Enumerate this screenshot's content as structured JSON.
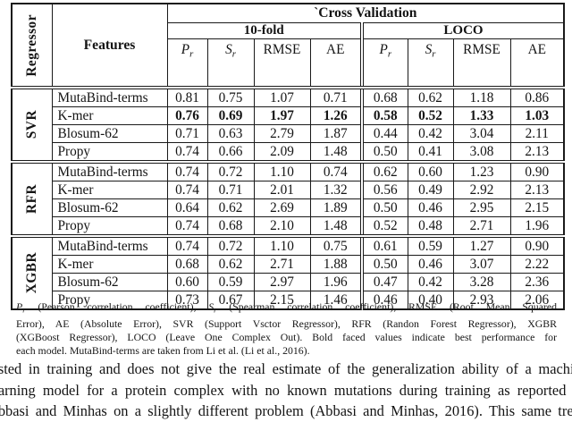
{
  "table": {
    "regressor_header": "Regressor",
    "features_header": "Features",
    "cross_validation_header": "`Cross Validation",
    "group_headers": [
      "10-fold",
      "LOCO"
    ],
    "metric_headers": [
      {
        "b": "P",
        "sub": "r",
        "italic": true
      },
      {
        "b": "S",
        "sub": "r",
        "italic": true
      },
      {
        "b": "RMSE",
        "sub": "",
        "italic": false
      },
      {
        "b": "AE",
        "sub": "",
        "italic": false
      },
      {
        "b": "P",
        "sub": "r",
        "italic": true
      },
      {
        "b": "S",
        "sub": "r",
        "italic": true
      },
      {
        "b": "RMSE",
        "sub": "",
        "italic": false
      },
      {
        "b": "AE",
        "sub": "",
        "italic": false
      }
    ],
    "sections": [
      {
        "regressor": "SVR",
        "rows": [
          {
            "feature": "MutaBind-terms",
            "bold": false,
            "values": [
              "0.81",
              "0.75",
              "1.07",
              "0.71",
              "0.68",
              "0.62",
              "1.18",
              "0.86"
            ]
          },
          {
            "feature": "K-mer",
            "bold": true,
            "values": [
              "0.76",
              "0.69",
              "1.97",
              "1.26",
              "0.58",
              "0.52",
              "1.33",
              "1.03"
            ]
          },
          {
            "feature": "Blosum-62",
            "bold": false,
            "values": [
              "0.71",
              "0.63",
              "2.79",
              "1.87",
              "0.44",
              "0.42",
              "3.04",
              "2.11"
            ]
          },
          {
            "feature": "Propy",
            "bold": false,
            "values": [
              "0.74",
              "0.66",
              "2.09",
              "1.48",
              "0.50",
              "0.41",
              "3.08",
              "2.13"
            ]
          }
        ]
      },
      {
        "regressor": "RFR",
        "rows": [
          {
            "feature": "MutaBind-terms",
            "bold": false,
            "values": [
              "0.74",
              "0.72",
              "1.10",
              "0.74",
              "0.62",
              "0.60",
              "1.23",
              "0.90"
            ]
          },
          {
            "feature": "K-mer",
            "bold": false,
            "values": [
              "0.74",
              "0.71",
              "2.01",
              "1.32",
              "0.56",
              "0.49",
              "2.92",
              "2.13"
            ]
          },
          {
            "feature": "Blosum-62",
            "bold": false,
            "values": [
              "0.64",
              "0.62",
              "2.69",
              "1.89",
              "0.50",
              "0.46",
              "2.95",
              "2.15"
            ]
          },
          {
            "feature": "Propy",
            "bold": false,
            "values": [
              "0.74",
              "0.68",
              "2.10",
              "1.48",
              "0.52",
              "0.48",
              "2.71",
              "1.96"
            ]
          }
        ]
      },
      {
        "regressor": "XGBR",
        "rows": [
          {
            "feature": "MutaBind-terms",
            "bold": false,
            "values": [
              "0.74",
              "0.72",
              "1.10",
              "0.75",
              "0.61",
              "0.59",
              "1.27",
              "0.90"
            ]
          },
          {
            "feature": "K-mer",
            "bold": false,
            "values": [
              "0.68",
              "0.62",
              "2.71",
              "1.88",
              "0.50",
              "0.46",
              "3.07",
              "2.22"
            ]
          },
          {
            "feature": "Blosum-62",
            "bold": false,
            "values": [
              "0.60",
              "0.59",
              "2.97",
              "1.96",
              "0.47",
              "0.42",
              "3.28",
              "2.36"
            ]
          },
          {
            "feature": "Propy",
            "bold": false,
            "values": [
              "0.73",
              "0.67",
              "2.15",
              "1.46",
              "0.46",
              "0.40",
              "2.93",
              "2.06"
            ]
          }
        ]
      }
    ]
  },
  "caption": {
    "lines": [
      {
        "segments": [
          {
            "t": "P",
            "s": "i"
          },
          {
            "t": "r",
            "s": "sub"
          },
          {
            "t": " (Pearson correlation coefficient), ",
            "s": ""
          },
          {
            "t": "S",
            "s": "i"
          },
          {
            "t": "r",
            "s": "sub"
          },
          {
            "t": " (Spearman correlation coefficient), RMSE (Root Mean Squared",
            "s": ""
          }
        ]
      },
      {
        "segments": [
          {
            "t": "Error), AE (Absolute Error), SVR (Support Vsctor Regressor), RFR (Randon Forest Regressor), XGBR",
            "s": ""
          }
        ]
      },
      {
        "segments": [
          {
            "t": "(XGBoost Regressor), LOCO (Leave One Complex Out). Bold faced values indicate best performance for",
            "s": ""
          }
        ]
      },
      {
        "segments": [
          {
            "t": "each model. MutaBind-terms are taken from Li et al. (Li et al., 2016).",
            "s": ""
          }
        ]
      }
    ]
  },
  "paragraph": {
    "lines": [
      "tested in training and does not give the real estimate of the generalization ability of a machine",
      "learning model for a protein complex with no known mutations during training as reported by",
      "Abbasi and Minhas on a slightly different problem (Abbasi and Minhas, 2016). This same trend"
    ]
  }
}
